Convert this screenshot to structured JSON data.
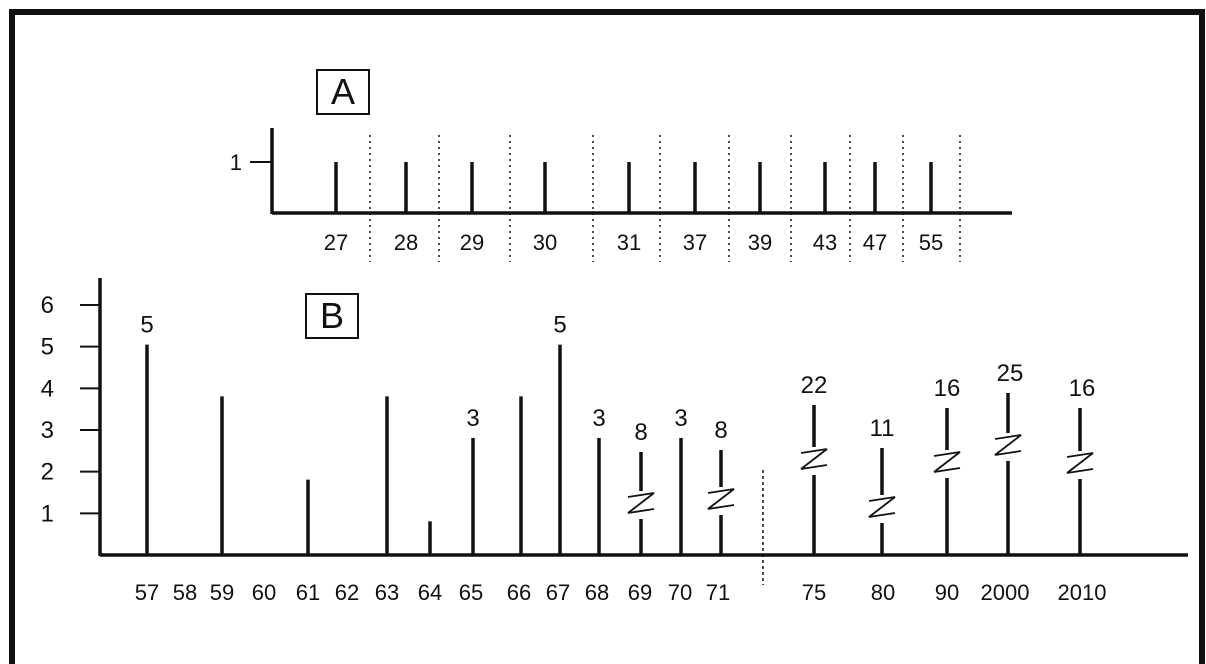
{
  "colors": {
    "ink": "#111111",
    "background": "#ffffff"
  },
  "chart_data": [
    {
      "panel": "A",
      "type": "bar",
      "panel_label": "A",
      "y_ticks": [
        "1"
      ],
      "ylim": [
        0,
        1
      ],
      "grid": false,
      "separators": "dotted vertical lines between categories",
      "categories": [
        "27",
        "28",
        "29",
        "30",
        "31",
        "37",
        "39",
        "43",
        "47",
        "55"
      ],
      "values": [
        1,
        1,
        1,
        1,
        1,
        1,
        1,
        1,
        1,
        1
      ]
    },
    {
      "panel": "B",
      "type": "bar",
      "panel_label": "B",
      "y_ticks": [
        "1",
        "2",
        "3",
        "4",
        "5",
        "6"
      ],
      "ylim": [
        0,
        6
      ],
      "grid": false,
      "axis_break_after": "71",
      "categories": [
        "57",
        "58",
        "59",
        "60",
        "61",
        "62",
        "63",
        "64",
        "65",
        "66",
        "67",
        "68",
        "69",
        "70",
        "71",
        "75",
        "80",
        "90",
        "2000",
        "2010"
      ],
      "values": [
        5,
        0,
        4,
        0,
        2,
        0,
        4,
        1,
        3,
        4,
        5,
        3,
        8,
        3,
        8,
        22,
        11,
        16,
        25,
        16
      ],
      "value_labels": [
        "5",
        "",
        "",
        "",
        "",
        "",
        "",
        "",
        "3",
        "",
        "5",
        "3",
        "8",
        "3",
        "8",
        "22",
        "11",
        "16",
        "25",
        "16"
      ],
      "broken_bars": [
        "69",
        "71",
        "75",
        "80",
        "90",
        "2000",
        "2010"
      ]
    }
  ]
}
